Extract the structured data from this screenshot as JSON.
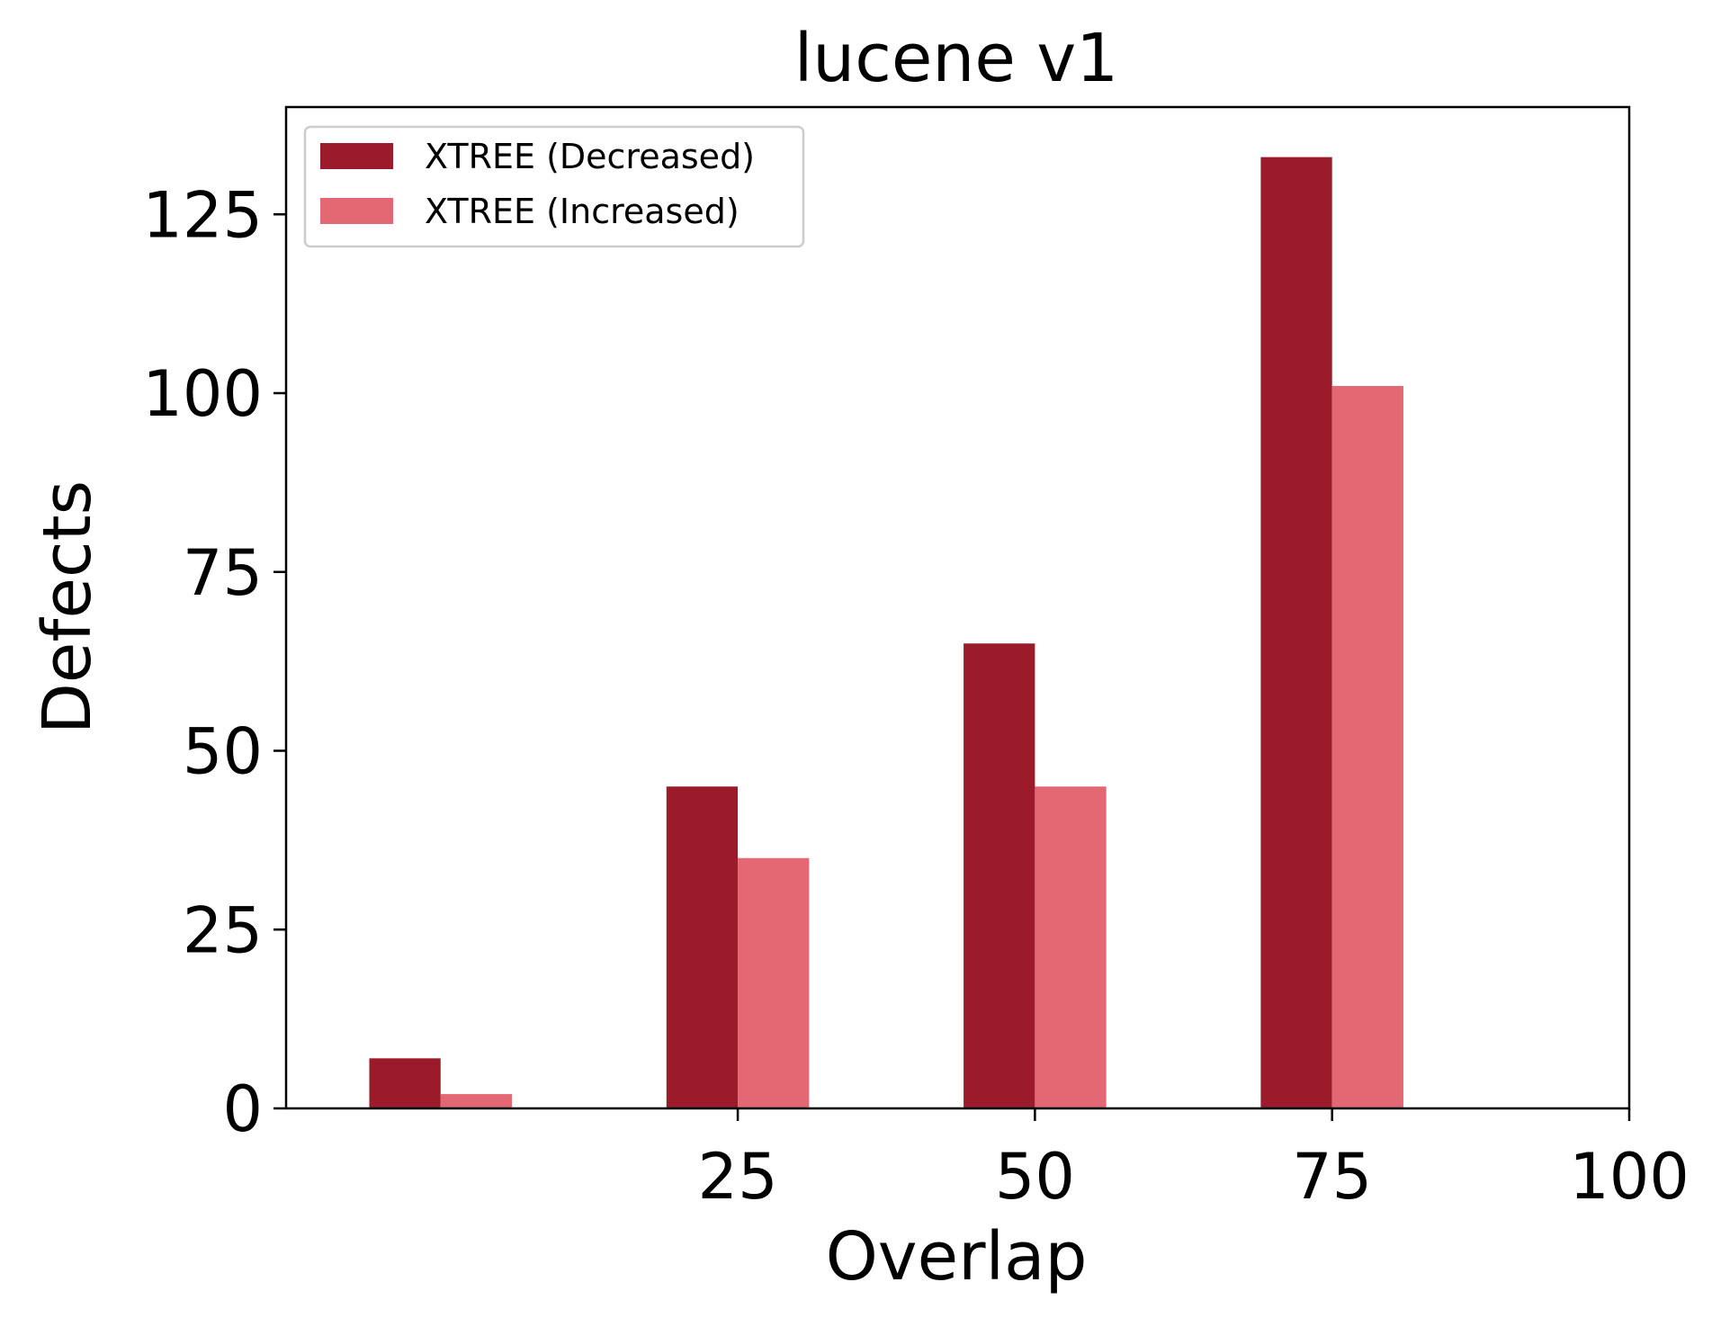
{
  "chart_data": {
    "type": "bar",
    "title": "lucene v1",
    "xlabel": "Overlap",
    "ylabel": "Defects",
    "categories": [
      0,
      25,
      50,
      75
    ],
    "x_ticks": [
      25,
      50,
      75,
      100
    ],
    "y_ticks": [
      0,
      25,
      50,
      75,
      100,
      125
    ],
    "xlim": [
      -13,
      100
    ],
    "ylim": [
      0,
      140
    ],
    "grid": false,
    "legend_position": "top-left",
    "series": [
      {
        "name": "XTREE (Decreased)",
        "color": "#9b1b2a",
        "values": [
          7,
          45,
          65,
          133
        ]
      },
      {
        "name": "XTREE (Increased)",
        "color": "#e36873",
        "values": [
          2,
          35,
          45,
          101
        ]
      }
    ]
  }
}
